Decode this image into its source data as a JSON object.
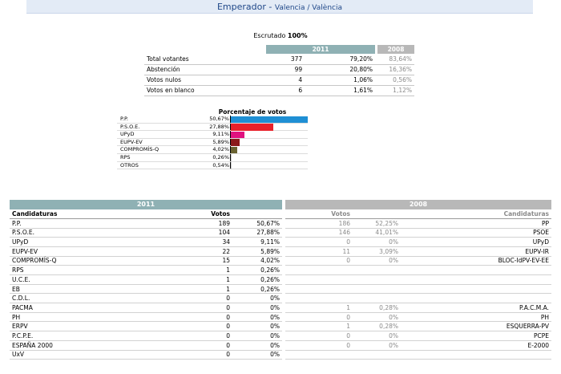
{
  "header": {
    "title": "Emperador",
    "separator": " - ",
    "subtitle": "Valencia / València"
  },
  "escrutado": {
    "label": "Escrutado",
    "value": "100%"
  },
  "summary": {
    "year_current": "2011",
    "year_previous": "2008",
    "rows": [
      {
        "label": "Total votantes",
        "votes": "377",
        "pct": "79,20%",
        "prev_pct": "83,64%"
      },
      {
        "label": "Abstención",
        "votes": "99",
        "pct": "20,80%",
        "prev_pct": "16,36%"
      },
      {
        "label": "Votos nulos",
        "votes": "4",
        "pct": "1,06%",
        "prev_pct": "0,56%"
      },
      {
        "label": "Votos en blanco",
        "votes": "6",
        "pct": "1,61%",
        "prev_pct": "1,12%"
      }
    ]
  },
  "chart_data": {
    "type": "bar",
    "title": "Porcentaje de votos",
    "categories": [
      "P.P.",
      "P.S.O.E.",
      "UPyD",
      "EUPV-EV",
      "COMPROMÍS-Q",
      "RPS",
      "OTROS"
    ],
    "labels": [
      "50,67%",
      "27,88%",
      "9,11%",
      "5,89%",
      "4,02%",
      "0,26%",
      "0,54%"
    ],
    "values": [
      50.67,
      27.88,
      9.11,
      5.89,
      4.02,
      0.26,
      0.54
    ],
    "colors": [
      "#1f8fd4",
      "#e8202a",
      "#e0127f",
      "#8b1a1a",
      "#6a6331",
      "#cccccc",
      "#cccccc"
    ],
    "xlim": [
      0,
      100
    ]
  },
  "results": {
    "year_current": "2011",
    "year_previous": "2008",
    "col_candidaturas": "Candidaturas",
    "col_votos": "Votos",
    "rows": [
      {
        "name": "P.P.",
        "votes": "189",
        "pct": "50,67%",
        "prev_votes": "186",
        "prev_pct": "52,25%",
        "prev_name": "PP"
      },
      {
        "name": "P.S.O.E.",
        "votes": "104",
        "pct": "27,88%",
        "prev_votes": "146",
        "prev_pct": "41,01%",
        "prev_name": "PSOE"
      },
      {
        "name": "UPyD",
        "votes": "34",
        "pct": "9,11%",
        "prev_votes": "0",
        "prev_pct": "0%",
        "prev_name": "UPyD"
      },
      {
        "name": "EUPV-EV",
        "votes": "22",
        "pct": "5,89%",
        "prev_votes": "11",
        "prev_pct": "3,09%",
        "prev_name": "EUPV-IR"
      },
      {
        "name": "COMPROMÍS-Q",
        "votes": "15",
        "pct": "4,02%",
        "prev_votes": "0",
        "prev_pct": "0%",
        "prev_name": "BLOC-IdPV-EV-EE"
      },
      {
        "name": "RPS",
        "votes": "1",
        "pct": "0,26%",
        "prev_votes": "",
        "prev_pct": "",
        "prev_name": ""
      },
      {
        "name": "U.C.E.",
        "votes": "1",
        "pct": "0,26%",
        "prev_votes": "",
        "prev_pct": "",
        "prev_name": ""
      },
      {
        "name": "EB",
        "votes": "1",
        "pct": "0,26%",
        "prev_votes": "",
        "prev_pct": "",
        "prev_name": ""
      },
      {
        "name": "C.D.L.",
        "votes": "0",
        "pct": "0%",
        "prev_votes": "",
        "prev_pct": "",
        "prev_name": ""
      },
      {
        "name": "PACMA",
        "votes": "0",
        "pct": "0%",
        "prev_votes": "1",
        "prev_pct": "0,28%",
        "prev_name": "P.A.C.M.A."
      },
      {
        "name": "PH",
        "votes": "0",
        "pct": "0%",
        "prev_votes": "0",
        "prev_pct": "0%",
        "prev_name": "PH"
      },
      {
        "name": "ERPV",
        "votes": "0",
        "pct": "0%",
        "prev_votes": "1",
        "prev_pct": "0,28%",
        "prev_name": "ESQUERRA-PV"
      },
      {
        "name": "P.C.P.E.",
        "votes": "0",
        "pct": "0%",
        "prev_votes": "0",
        "prev_pct": "0%",
        "prev_name": "PCPE"
      },
      {
        "name": "ESPAÑA 2000",
        "votes": "0",
        "pct": "0%",
        "prev_votes": "0",
        "prev_pct": "0%",
        "prev_name": "E-2000"
      },
      {
        "name": "UxV",
        "votes": "0",
        "pct": "0%",
        "prev_votes": "",
        "prev_pct": "",
        "prev_name": ""
      }
    ]
  }
}
